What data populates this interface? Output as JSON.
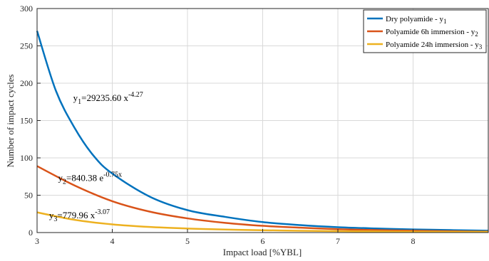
{
  "chart_data": {
    "type": "line",
    "xlabel": "Impact load [%YBL]",
    "ylabel": "Number of impact cycles",
    "xlim": [
      3,
      9
    ],
    "ylim": [
      0,
      300
    ],
    "xticks": [
      3,
      4,
      5,
      6,
      7,
      8
    ],
    "yticks": [
      0,
      50,
      100,
      150,
      200,
      250,
      300
    ],
    "grid": true,
    "legend_position": "top-right",
    "series": [
      {
        "name": "Dry polyamide - y1",
        "legend_base": "Dry polyamide - y",
        "legend_sub": "1",
        "color": "#0072BD",
        "x": [
          3,
          3.25,
          3.5,
          3.75,
          4,
          4.5,
          5,
          5.5,
          6,
          6.5,
          7,
          7.5,
          8,
          8.5,
          9
        ],
        "y": [
          270,
          190,
          140,
          103,
          79,
          48,
          30,
          21,
          14,
          10,
          7.2,
          5.5,
          4.2,
          3.3,
          2.5
        ]
      },
      {
        "name": "Polyamide 6h immersion - y2",
        "legend_base": "Polyamide 6h immersion - y",
        "legend_sub": "2",
        "color": "#D95319",
        "x": [
          3,
          3.5,
          4,
          4.5,
          5,
          5.5,
          6,
          6.5,
          7,
          7.5,
          8,
          8.5,
          9
        ],
        "y": [
          89,
          63,
          42,
          28,
          19,
          13,
          9,
          6.5,
          4.5,
          3.3,
          2.5,
          1.8,
          1.3
        ]
      },
      {
        "name": "Polyamide 24h immersion - y3",
        "legend_base": "Polyamide 24h immersion - y",
        "legend_sub": "3",
        "color": "#EDB120",
        "x": [
          3,
          3.5,
          4,
          4.5,
          5,
          5.5,
          6,
          6.5,
          7,
          7.5,
          8,
          8.5,
          9
        ],
        "y": [
          27,
          17,
          11,
          7.5,
          5.4,
          4.0,
          3.1,
          2.4,
          1.9,
          1.5,
          1.2,
          1.0,
          0.9
        ]
      }
    ],
    "annotations": [
      {
        "base": "y",
        "sub": "1",
        "text": "=29235.60 x",
        "sup": "-4.27",
        "x": 3.48,
        "y": 176
      },
      {
        "base": "y",
        "sub": "2",
        "text": "=840.38 e",
        "sup": "-0.75x",
        "x": 3.28,
        "y": 69
      },
      {
        "base": "y",
        "sub": "3",
        "text": "=779.96 x",
        "sup": "-3.07",
        "x": 3.16,
        "y": 19
      }
    ]
  }
}
